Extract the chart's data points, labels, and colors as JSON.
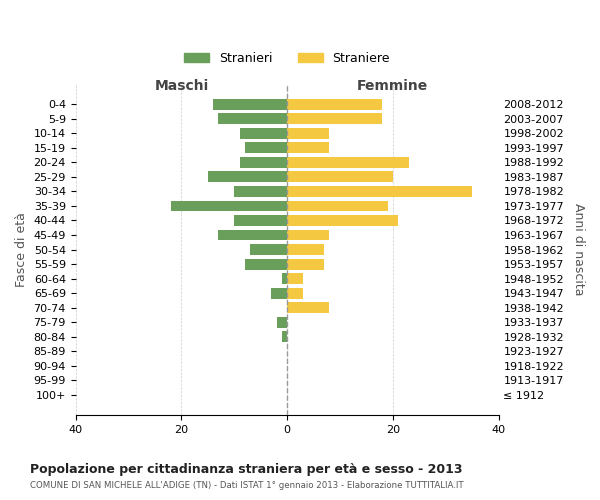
{
  "age_groups": [
    "100+",
    "95-99",
    "90-94",
    "85-89",
    "80-84",
    "75-79",
    "70-74",
    "65-69",
    "60-64",
    "55-59",
    "50-54",
    "45-49",
    "40-44",
    "35-39",
    "30-34",
    "25-29",
    "20-24",
    "15-19",
    "10-14",
    "5-9",
    "0-4"
  ],
  "birth_years": [
    "≤ 1912",
    "1913-1917",
    "1918-1922",
    "1923-1927",
    "1928-1932",
    "1933-1937",
    "1938-1942",
    "1943-1947",
    "1948-1952",
    "1953-1957",
    "1958-1962",
    "1963-1967",
    "1968-1972",
    "1973-1977",
    "1978-1982",
    "1983-1987",
    "1988-1992",
    "1993-1997",
    "1998-2002",
    "2003-2007",
    "2008-2012"
  ],
  "maschi": [
    0,
    0,
    0,
    0,
    1,
    2,
    0,
    3,
    1,
    8,
    7,
    13,
    10,
    22,
    10,
    15,
    9,
    8,
    9,
    13,
    14
  ],
  "femmine": [
    0,
    0,
    0,
    0,
    0,
    0,
    8,
    3,
    3,
    7,
    7,
    8,
    21,
    19,
    35,
    20,
    23,
    8,
    8,
    18,
    18
  ],
  "maschi_color": "#6a9f5b",
  "femmine_color": "#f5c842",
  "background_color": "#ffffff",
  "grid_color": "#cccccc",
  "title": "Popolazione per cittadinanza straniera per età e sesso - 2013",
  "subtitle": "COMUNE DI SAN MICHELE ALL'ADIGE (TN) - Dati ISTAT 1° gennaio 2013 - Elaborazione TUTTITALIA.IT",
  "xlabel_left": "Maschi",
  "xlabel_right": "Femmine",
  "ylabel_left": "Fasce di età",
  "ylabel_right": "Anni di nascita",
  "legend_maschi": "Stranieri",
  "legend_femmine": "Straniere",
  "xlim": 40
}
